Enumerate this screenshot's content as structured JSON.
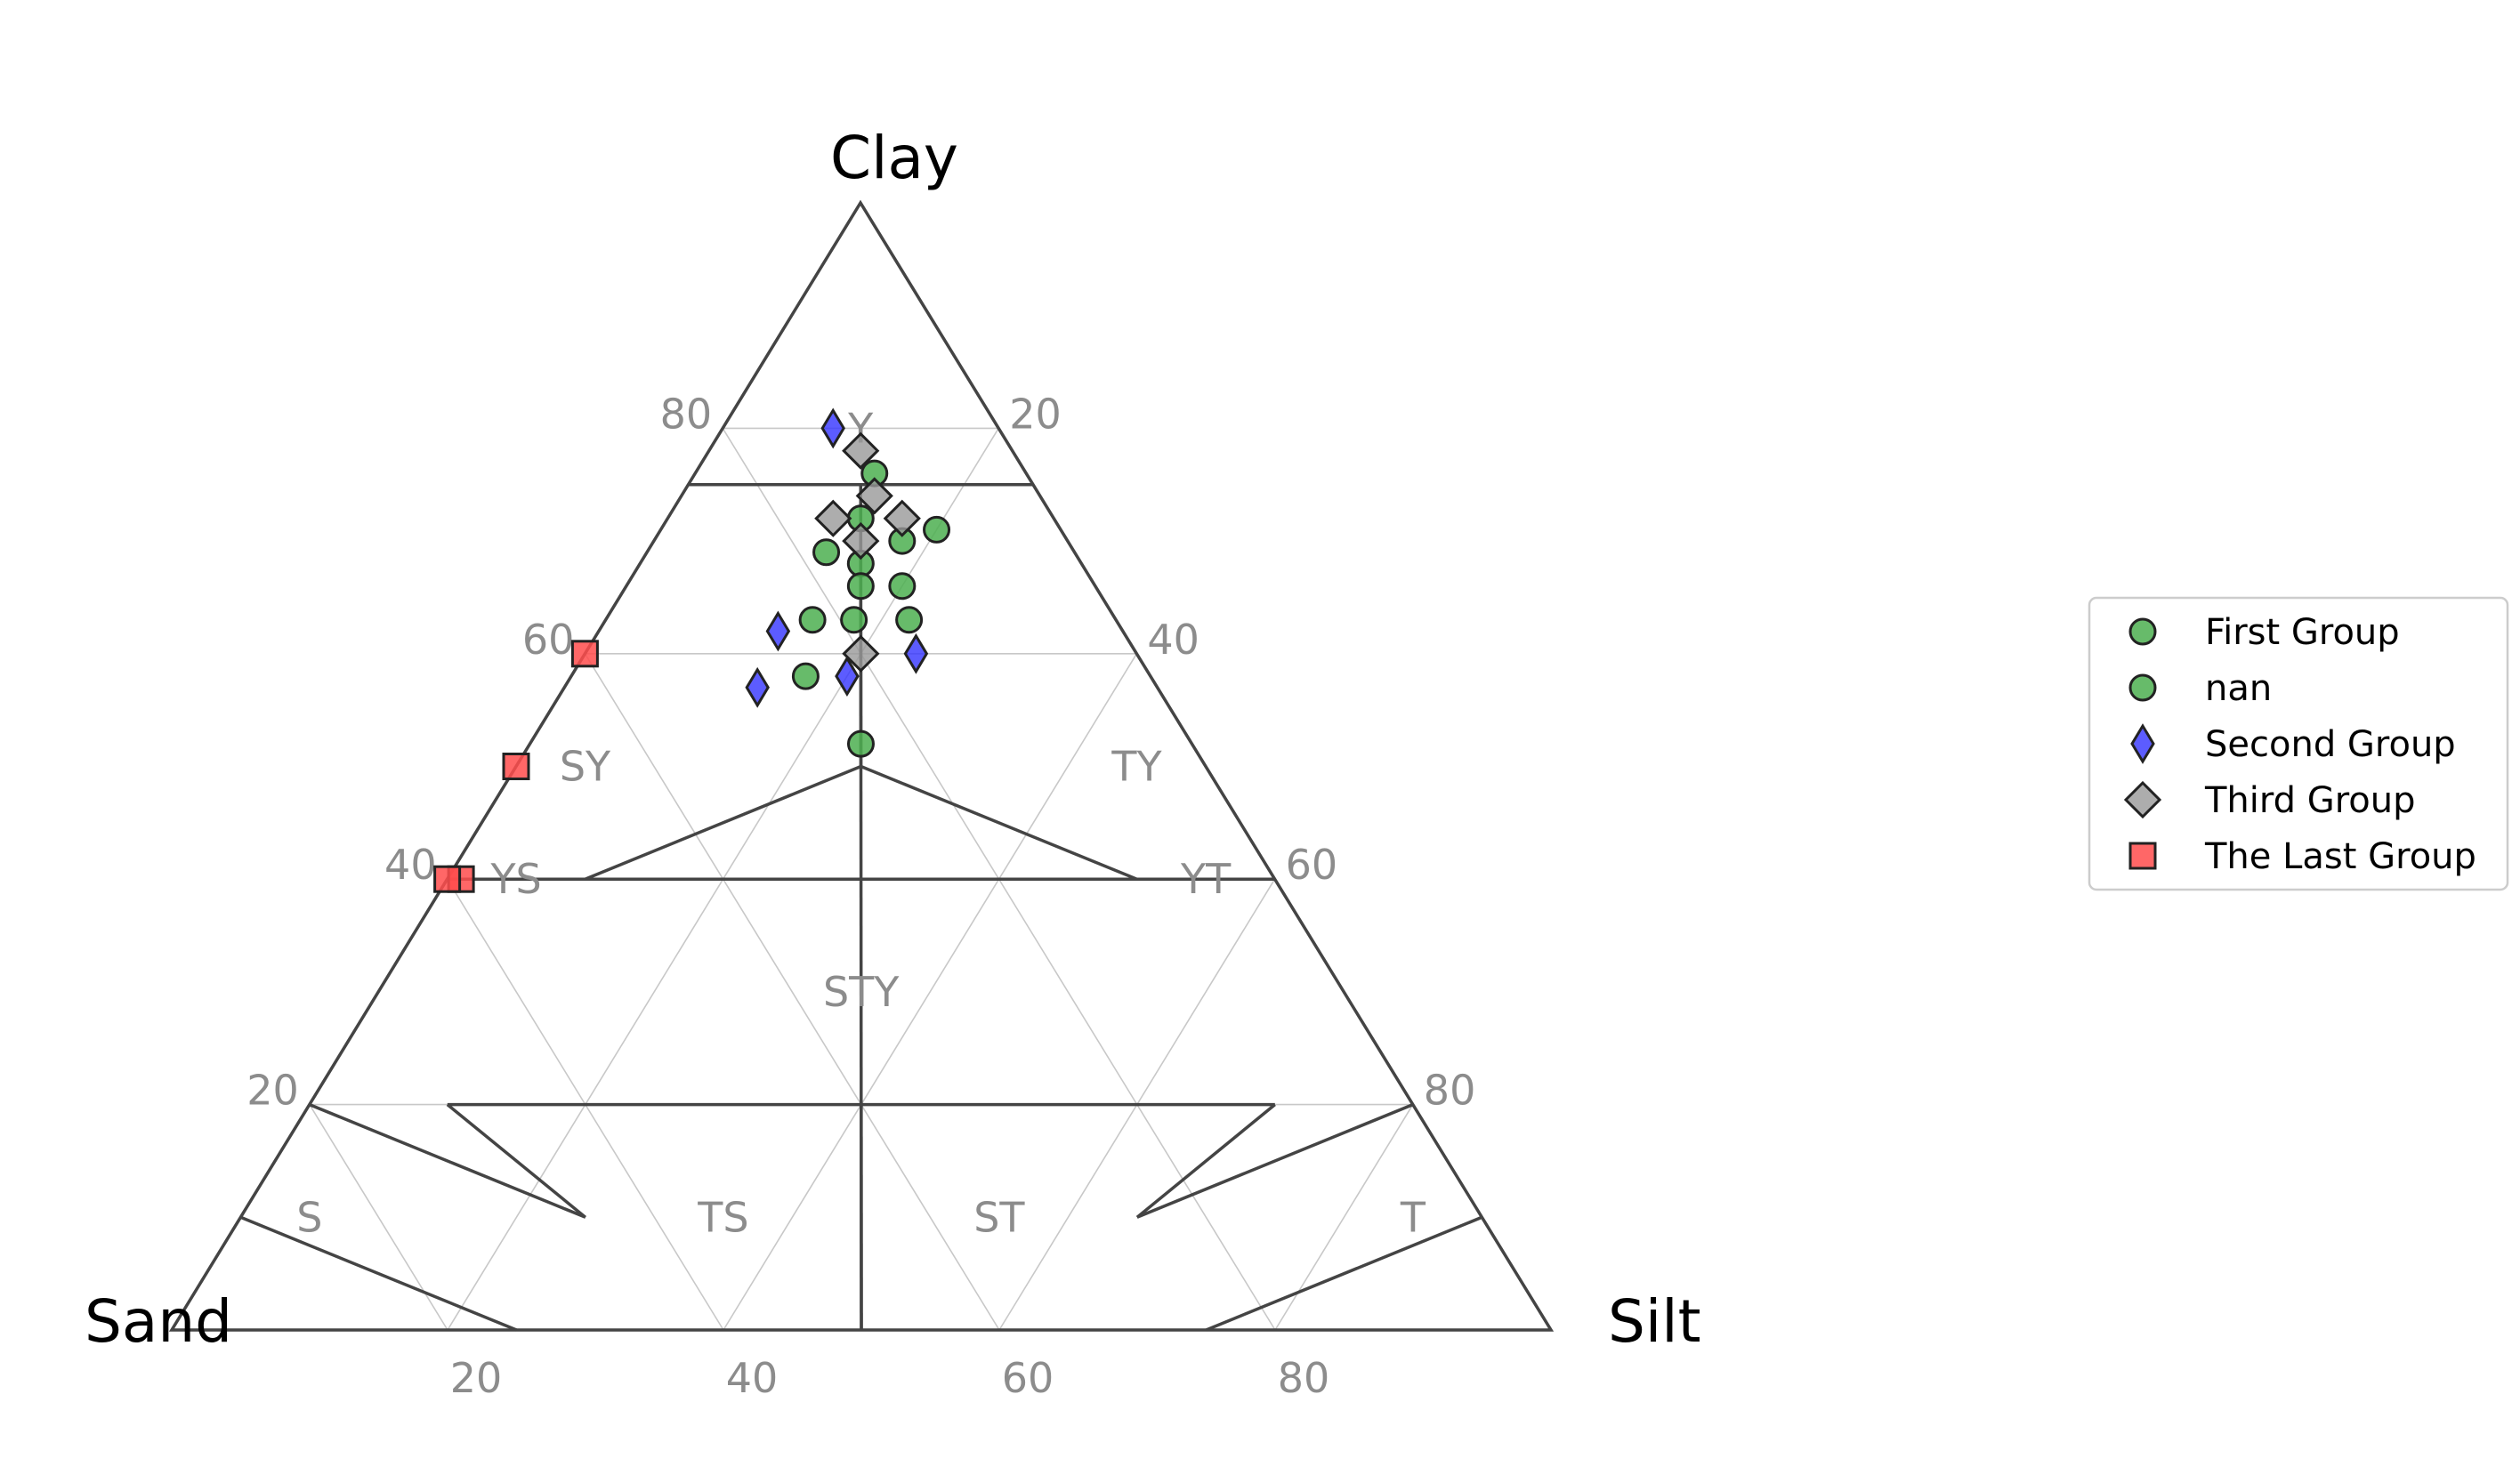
{
  "chart_data": {
    "type": "scatter",
    "subtype": "ternary",
    "vertices": {
      "top": "Clay",
      "left": "Sand",
      "right": "Silt"
    },
    "ticks": {
      "left_edge": [
        20,
        40,
        60,
        80
      ],
      "right_edge": [
        80,
        60,
        40,
        20
      ],
      "bottom_edge": [
        20,
        40,
        60,
        80
      ]
    },
    "grid": true,
    "legend_position": "center-right",
    "regions": [
      {
        "label": "Y",
        "sand": 10,
        "silt": 10,
        "clay": 80
      },
      {
        "label": "SY",
        "sand": 45,
        "silt": 5,
        "clay": 50
      },
      {
        "label": "TY",
        "sand": 5,
        "silt": 45,
        "clay": 50
      },
      {
        "label": "YS",
        "sand": 55,
        "silt": 5,
        "clay": 40
      },
      {
        "label": "STY",
        "sand": 35,
        "silt": 35,
        "clay": 30
      },
      {
        "label": "YT",
        "sand": 5,
        "silt": 55,
        "clay": 40
      },
      {
        "label": "S",
        "sand": 85,
        "silt": 5,
        "clay": 10
      },
      {
        "label": "TS",
        "sand": 55,
        "silt": 35,
        "clay": 10
      },
      {
        "label": "ST",
        "sand": 35,
        "silt": 55,
        "clay": 10
      },
      {
        "label": "T",
        "sand": 5,
        "silt": 85,
        "clay": 10
      }
    ],
    "series": [
      {
        "name": "First Group",
        "marker": "circle",
        "color": "#4caf50",
        "points": [
          {
            "sand": 11,
            "silt": 13,
            "clay": 76
          },
          {
            "sand": 14,
            "silt": 14,
            "clay": 72
          },
          {
            "sand": 18,
            "silt": 13,
            "clay": 69
          },
          {
            "sand": 12,
            "silt": 18,
            "clay": 70
          },
          {
            "sand": 9,
            "silt": 20,
            "clay": 71
          },
          {
            "sand": 16,
            "silt": 16,
            "clay": 68
          },
          {
            "sand": 14,
            "silt": 20,
            "clay": 66
          },
          {
            "sand": 22,
            "silt": 15,
            "clay": 63
          },
          {
            "sand": 15,
            "silt": 22,
            "clay": 63
          },
          {
            "sand": 25,
            "silt": 17,
            "clay": 58
          },
          {
            "sand": 24,
            "silt": 24,
            "clay": 52
          }
        ]
      },
      {
        "name": "nan",
        "marker": "circle",
        "color": "#4caf50",
        "points": [
          {
            "sand": 17,
            "silt": 17,
            "clay": 66
          },
          {
            "sand": 19,
            "silt": 18,
            "clay": 63
          }
        ]
      },
      {
        "name": "Second Group",
        "marker": "diamond",
        "color": "#3333ff",
        "points": [
          {
            "sand": 12,
            "silt": 8,
            "clay": 80
          },
          {
            "sand": 25,
            "silt": 13,
            "clay": 62
          },
          {
            "sand": 29,
            "silt": 14,
            "clay": 57
          },
          {
            "sand": 22,
            "silt": 20,
            "clay": 58
          },
          {
            "sand": 16,
            "silt": 24,
            "clay": 60
          }
        ]
      },
      {
        "name": "Third Group",
        "marker": "diamond-gray",
        "color": "#999999",
        "points": [
          {
            "sand": 11,
            "silt": 11,
            "clay": 78
          },
          {
            "sand": 12,
            "silt": 14,
            "clay": 74
          },
          {
            "sand": 16,
            "silt": 12,
            "clay": 72
          },
          {
            "sand": 11,
            "silt": 17,
            "clay": 72
          },
          {
            "sand": 15,
            "silt": 15,
            "clay": 70
          },
          {
            "sand": 20,
            "silt": 20,
            "clay": 60
          }
        ]
      },
      {
        "name": "The Last Group",
        "marker": "square",
        "color": "#ff4c4c",
        "points": [
          {
            "sand": 40,
            "silt": 0,
            "clay": 60
          },
          {
            "sand": 50,
            "silt": 0,
            "clay": 50
          },
          {
            "sand": 59,
            "silt": 1,
            "clay": 40
          },
          {
            "sand": 60,
            "silt": 0,
            "clay": 40
          }
        ]
      }
    ]
  }
}
